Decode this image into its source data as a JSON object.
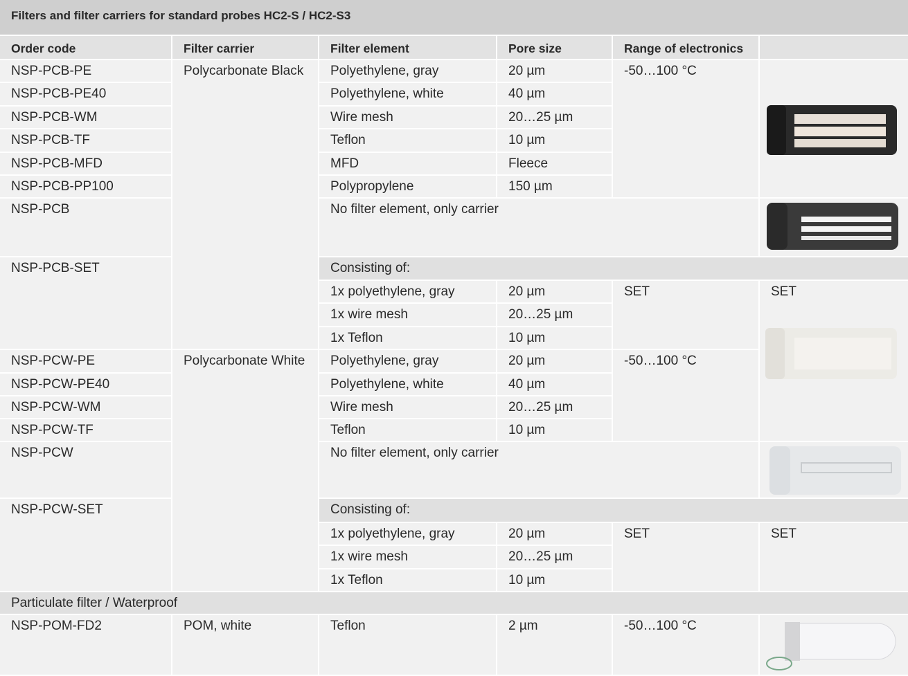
{
  "title": "Filters and filter carriers for standard probes HC2-S / HC2-S3",
  "header": [
    "Order code",
    "Filter carrier",
    "Filter element",
    "Pore size",
    "Range of electronics"
  ],
  "rows": [
    [
      "NSP-PCB-PE",
      "Polycarbonate Black",
      "Polyethylene, gray",
      "20 µm",
      "-50…100 °C"
    ],
    [
      "NSP-PCB-PE40",
      "Polyethylene, white",
      "40 µm"
    ],
    [
      "NSP-PCB-WM",
      "Wire mesh",
      "20…25 µm"
    ],
    [
      "NSP-PCB-TF",
      "Teflon",
      "10 µm"
    ],
    [
      "NSP-PCB-MFD",
      "MFD",
      "Fleece"
    ],
    [
      "NSP-PCB-PP100",
      "Polypropylene",
      "150 µm"
    ],
    [
      "NSP-PCB",
      "No filter element, only carrier"
    ],
    [
      "NSP-PCB-SET",
      "Consisting of:"
    ],
    [
      "1x polyethylene, gray",
      "20 µm",
      "SET",
      "SET"
    ],
    [
      "1x wire mesh",
      "20…25 µm"
    ],
    [
      "1x Teflon",
      "10 µm"
    ],
    [
      "NSP-PCW-PE",
      "Polycarbonate White",
      "Polyethylene, gray",
      "20 µm",
      "-50…100 °C"
    ],
    [
      "NSP-PCW-PE40",
      "Polyethylene, white",
      "40 µm"
    ],
    [
      "NSP-PCW-WM",
      "Wire mesh",
      "20…25 µm"
    ],
    [
      "NSP-PCW-TF",
      "Teflon",
      "10 µm"
    ],
    [
      "NSP-PCW",
      "No filter element, only carrier"
    ],
    [
      "NSP-PCW-SET",
      "Consisting of:"
    ],
    [
      "1x polyethylene, gray",
      "20 µm",
      "SET",
      "SET"
    ],
    [
      "1x wire mesh",
      "20…25 µm"
    ],
    [
      "1x Teflon",
      "10 µm"
    ],
    [
      "Particulate filter / Waterproof"
    ],
    [
      "NSP-POM-FD2",
      "POM, white",
      "Teflon",
      "2 µm",
      "-50…100 °C"
    ]
  ]
}
